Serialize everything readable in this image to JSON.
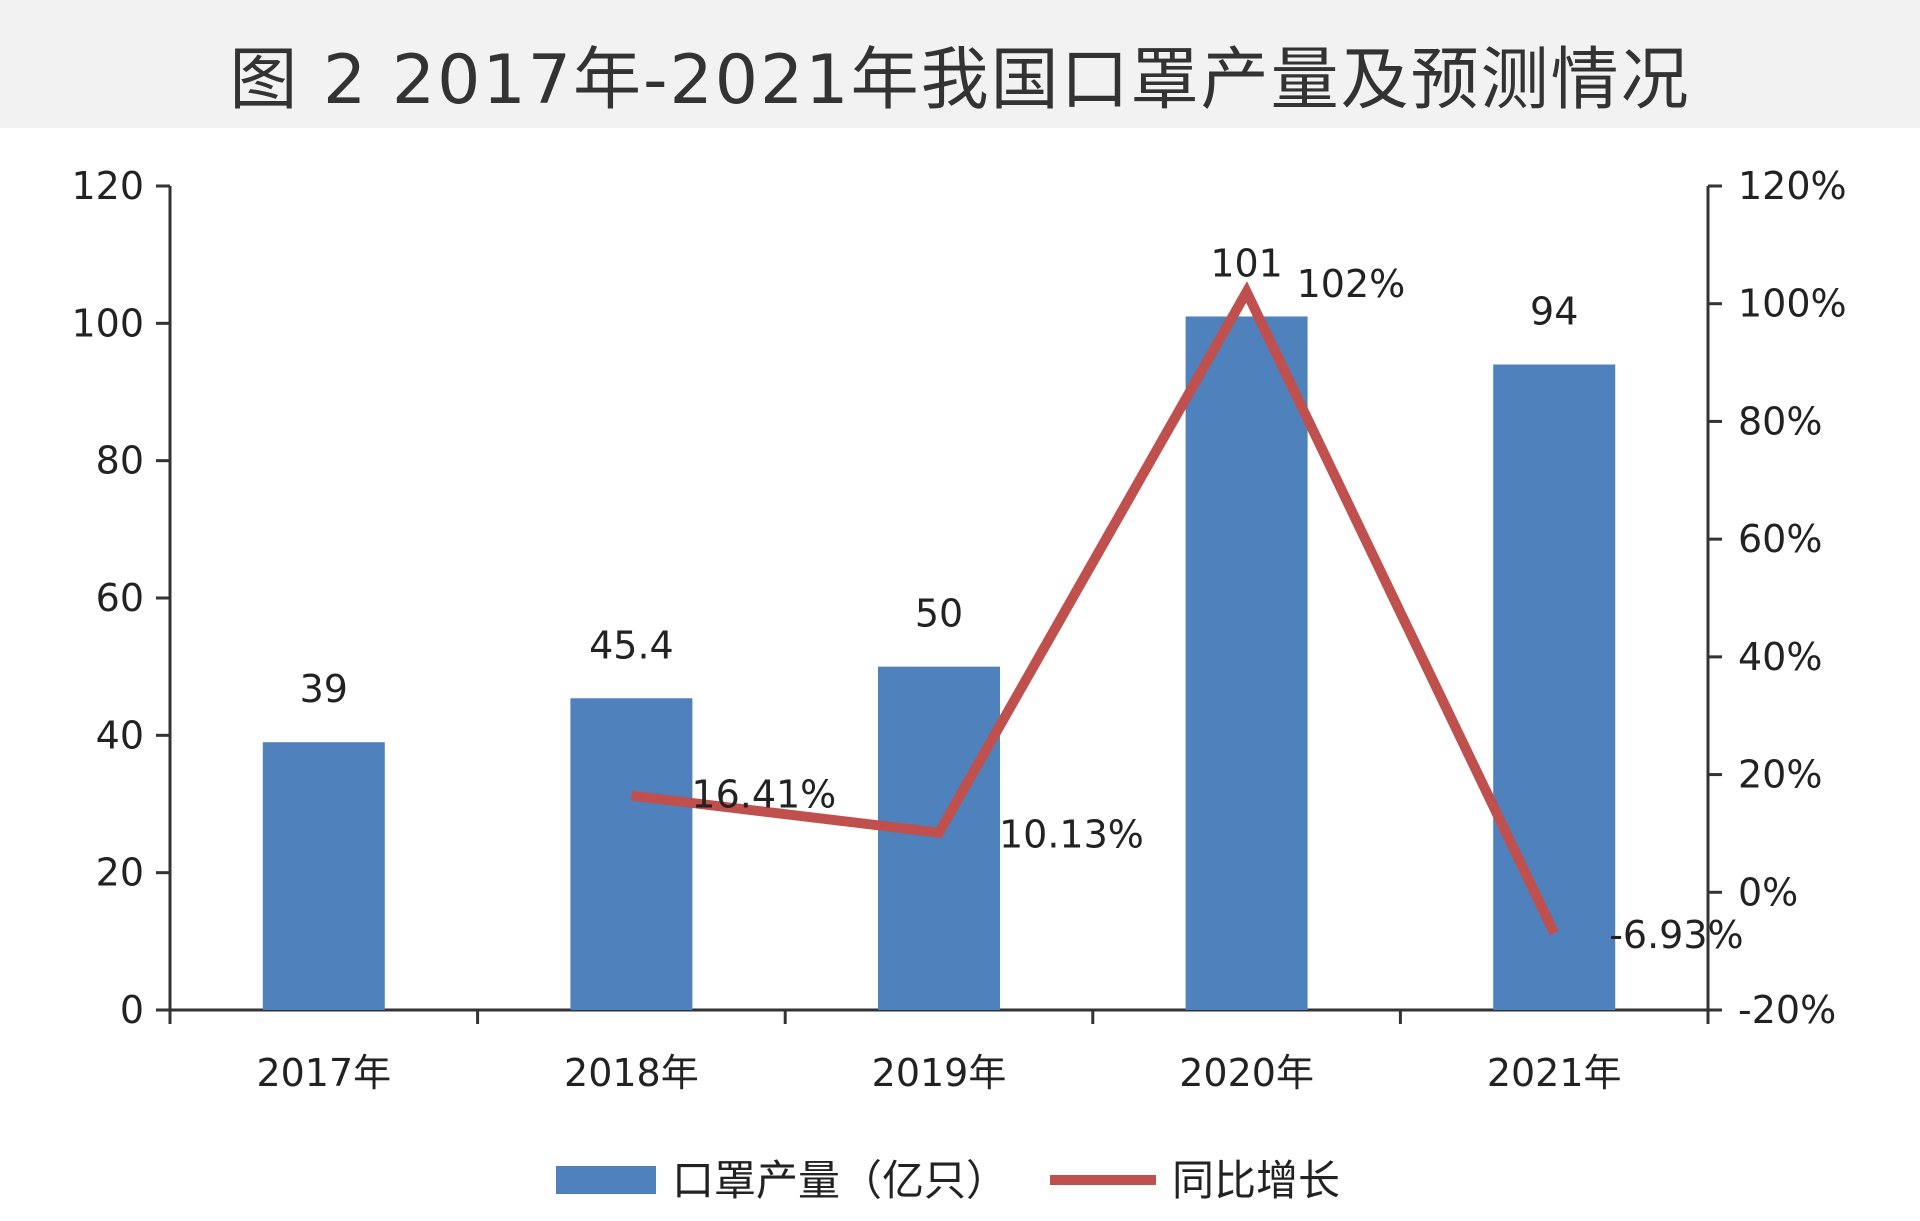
{
  "title": "图 2 2017年-2021年我国口罩产量及预测情况",
  "colors": {
    "bar": "#4f81bd",
    "line": "#c0504d",
    "text": "#222222"
  },
  "chart_data": {
    "type": "bar",
    "categories": [
      "2017年",
      "2018年",
      "2019年",
      "2020年",
      "2021年"
    ],
    "series": [
      {
        "name": "口罩产量（亿只）",
        "type": "bar",
        "axis": "left",
        "values": [
          39,
          45.4,
          50,
          101,
          94
        ],
        "labels": [
          "39",
          "45.4",
          "50",
          "101",
          "94"
        ]
      },
      {
        "name": "同比增长",
        "type": "line",
        "axis": "right",
        "values": [
          null,
          16.41,
          10.13,
          102,
          -6.93
        ],
        "labels": [
          "",
          "16.41%",
          "10.13%",
          "102%",
          "-6.93%"
        ]
      }
    ],
    "left_axis": {
      "min": 0,
      "max": 120,
      "ticks": [
        "0",
        "20",
        "40",
        "60",
        "80",
        "100",
        "120"
      ]
    },
    "right_axis": {
      "min": -20,
      "max": 120,
      "ticks": [
        "-20%",
        "0%",
        "20%",
        "40%",
        "60%",
        "80%",
        "100%",
        "120%"
      ]
    },
    "legend_position": "bottom",
    "grid": false
  }
}
